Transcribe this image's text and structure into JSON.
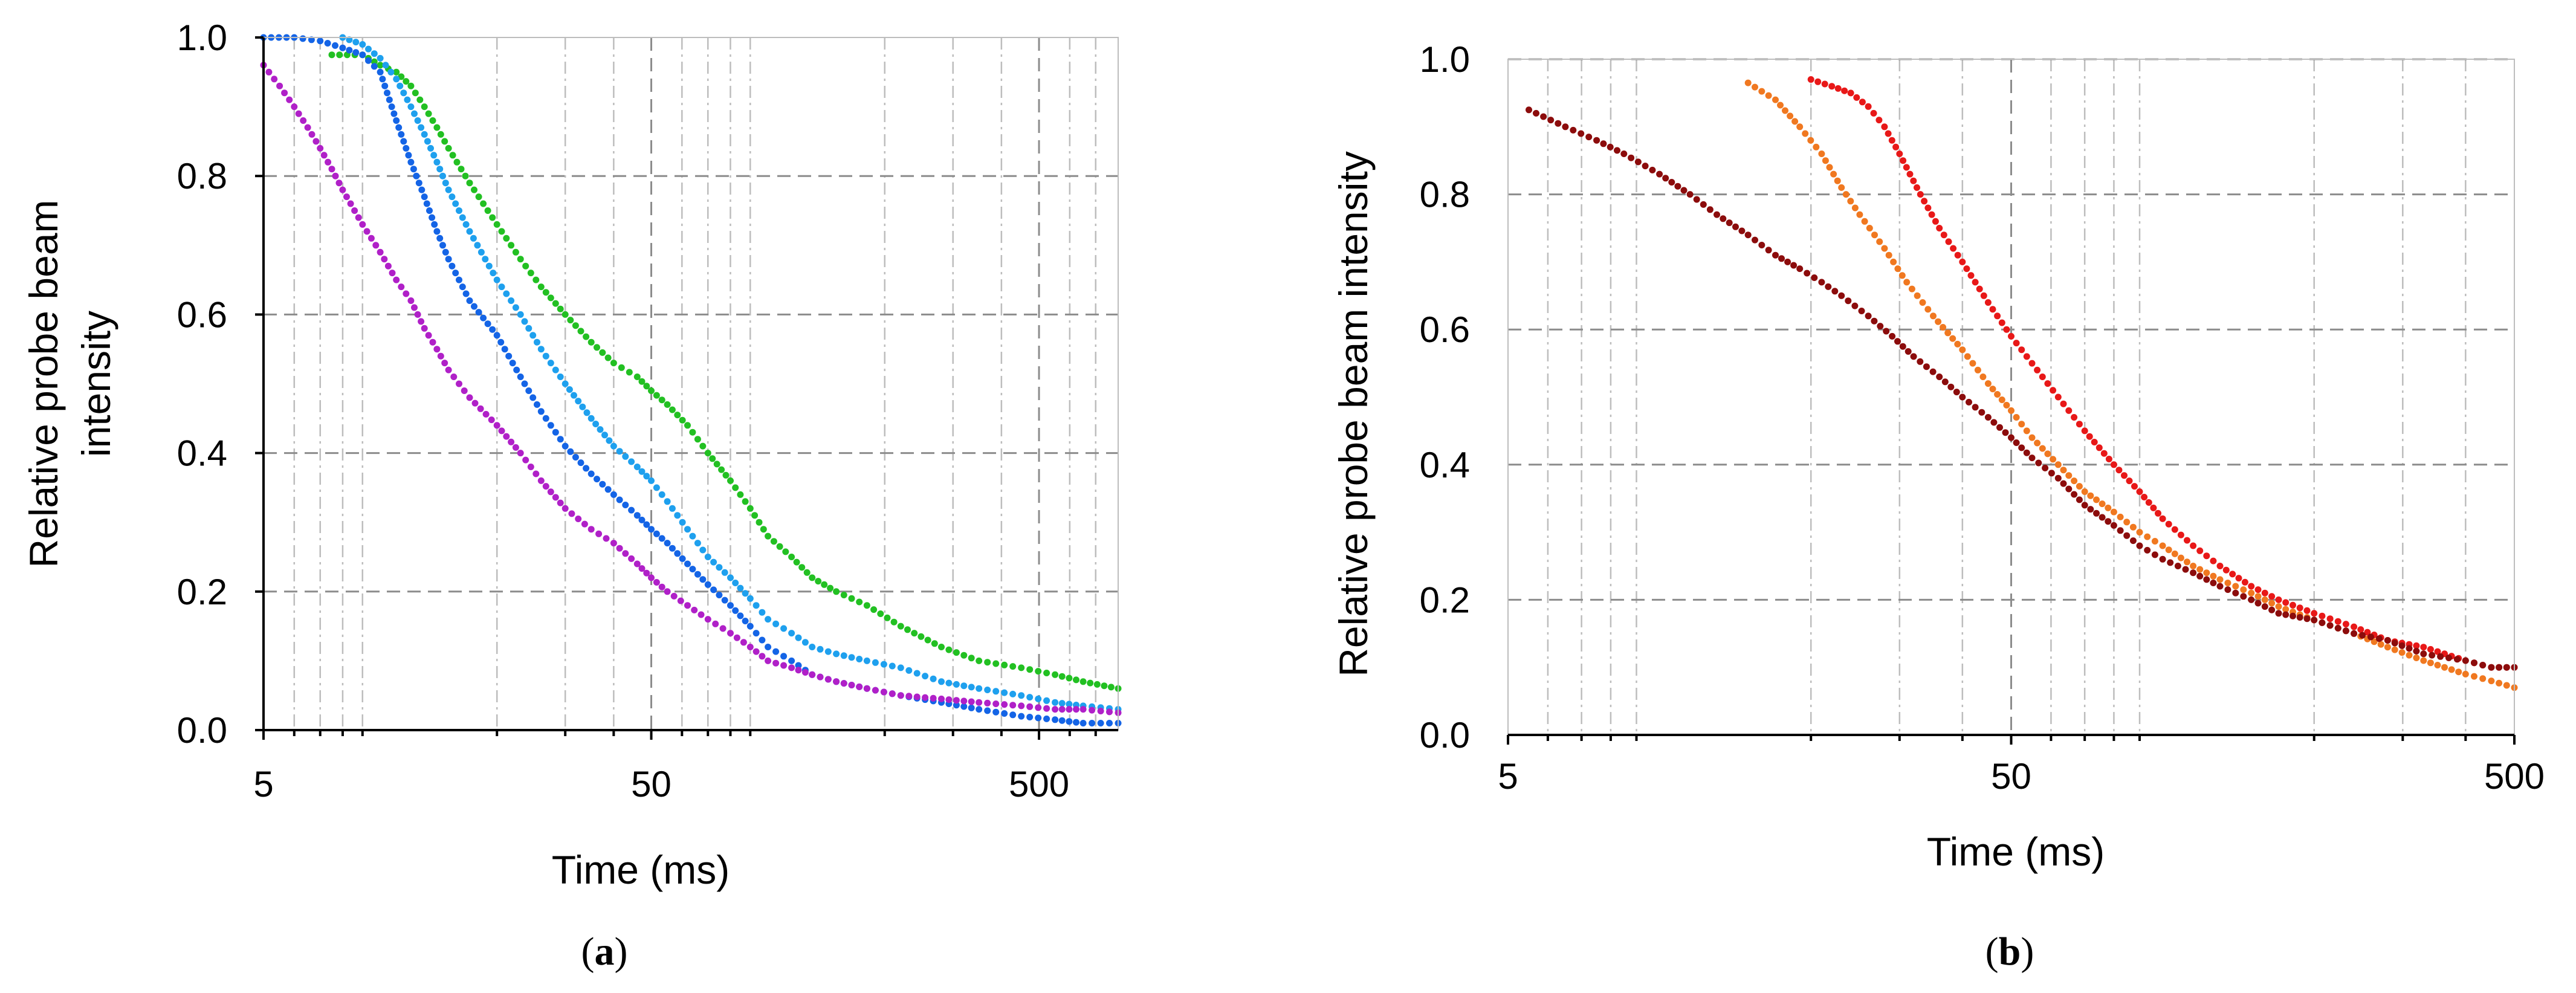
{
  "chart_data": [
    {
      "type": "scatter",
      "panel_label": "a",
      "xlabel": "Time (ms)",
      "ylabel_lines": [
        "Relative probe beam",
        "intensity"
      ],
      "xscale": "log",
      "xlim": [
        5,
        800
      ],
      "ylim": [
        0,
        1
      ],
      "x_ticks": [
        5,
        50,
        500
      ],
      "x_tick_labels": [
        "5",
        "50",
        "500"
      ],
      "y_ticks": [
        0,
        0.2,
        0.4,
        0.6,
        0.8,
        1.0
      ],
      "y_tick_labels": [
        "0.0",
        "0.2",
        "0.4",
        "0.6",
        "0.8",
        "1.0"
      ],
      "grid": true,
      "series": [
        {
          "color": "#22c022",
          "points": [
            [
              7.5,
              0.975
            ],
            [
              9,
              0.975
            ],
            [
              10,
              0.96
            ],
            [
              11,
              0.95
            ],
            [
              12,
              0.93
            ],
            [
              13,
              0.9
            ],
            [
              14,
              0.87
            ],
            [
              15,
              0.84
            ],
            [
              17,
              0.79
            ],
            [
              20,
              0.73
            ],
            [
              23,
              0.68
            ],
            [
              26,
              0.64
            ],
            [
              30,
              0.6
            ],
            [
              35,
              0.56
            ],
            [
              40,
              0.53
            ],
            [
              46,
              0.51
            ],
            [
              50,
              0.49
            ],
            [
              55,
              0.47
            ],
            [
              62,
              0.44
            ],
            [
              70,
              0.4
            ],
            [
              80,
              0.36
            ],
            [
              90,
              0.32
            ],
            [
              100,
              0.28
            ],
            [
              115,
              0.25
            ],
            [
              130,
              0.22
            ],
            [
              150,
              0.2
            ],
            [
              180,
              0.18
            ],
            [
              220,
              0.15
            ],
            [
              280,
              0.12
            ],
            [
              350,
              0.1
            ],
            [
              450,
              0.09
            ],
            [
              550,
              0.08
            ],
            [
              650,
              0.07
            ],
            [
              800,
              0.06
            ]
          ]
        },
        {
          "color": "#1ea0ee",
          "points": [
            [
              8,
              1.0
            ],
            [
              9,
              0.99
            ],
            [
              10,
              0.97
            ],
            [
              11,
              0.94
            ],
            [
              12,
              0.9
            ],
            [
              13,
              0.86
            ],
            [
              14,
              0.82
            ],
            [
              15,
              0.78
            ],
            [
              17,
              0.72
            ],
            [
              20,
              0.65
            ],
            [
              23,
              0.6
            ],
            [
              26,
              0.55
            ],
            [
              30,
              0.5
            ],
            [
              35,
              0.45
            ],
            [
              40,
              0.41
            ],
            [
              46,
              0.38
            ],
            [
              50,
              0.36
            ],
            [
              55,
              0.33
            ],
            [
              62,
              0.29
            ],
            [
              70,
              0.25
            ],
            [
              80,
              0.22
            ],
            [
              90,
              0.19
            ],
            [
              100,
              0.16
            ],
            [
              115,
              0.14
            ],
            [
              130,
              0.12
            ],
            [
              150,
              0.11
            ],
            [
              180,
              0.1
            ],
            [
              220,
              0.09
            ],
            [
              280,
              0.07
            ],
            [
              350,
              0.06
            ],
            [
              450,
              0.05
            ],
            [
              550,
              0.04
            ],
            [
              650,
              0.035
            ],
            [
              800,
              0.03
            ]
          ]
        },
        {
          "color": "#1464e6",
          "points": [
            [
              5,
              1.0
            ],
            [
              6,
              1.0
            ],
            [
              7,
              0.995
            ],
            [
              8,
              0.985
            ],
            [
              9,
              0.975
            ],
            [
              10,
              0.95
            ],
            [
              11,
              0.88
            ],
            [
              12,
              0.82
            ],
            [
              13,
              0.77
            ],
            [
              14,
              0.72
            ],
            [
              15,
              0.68
            ],
            [
              17,
              0.62
            ],
            [
              20,
              0.57
            ],
            [
              23,
              0.51
            ],
            [
              26,
              0.46
            ],
            [
              30,
              0.41
            ],
            [
              35,
              0.37
            ],
            [
              40,
              0.34
            ],
            [
              46,
              0.31
            ],
            [
              50,
              0.29
            ],
            [
              55,
              0.27
            ],
            [
              62,
              0.24
            ],
            [
              70,
              0.21
            ],
            [
              80,
              0.18
            ],
            [
              90,
              0.15
            ],
            [
              100,
              0.12
            ],
            [
              115,
              0.1
            ],
            [
              130,
              0.08
            ],
            [
              150,
              0.07
            ],
            [
              180,
              0.06
            ],
            [
              220,
              0.05
            ],
            [
              280,
              0.04
            ],
            [
              350,
              0.03
            ],
            [
              450,
              0.02
            ],
            [
              550,
              0.015
            ],
            [
              650,
              0.01
            ],
            [
              800,
              0.01
            ]
          ]
        },
        {
          "color": "#b020c8",
          "points": [
            [
              5,
              0.96
            ],
            [
              5.5,
              0.93
            ],
            [
              6,
              0.9
            ],
            [
              6.5,
              0.87
            ],
            [
              7,
              0.84
            ],
            [
              7.5,
              0.81
            ],
            [
              8,
              0.78
            ],
            [
              9,
              0.73
            ],
            [
              10,
              0.69
            ],
            [
              11,
              0.65
            ],
            [
              12,
              0.62
            ],
            [
              13,
              0.58
            ],
            [
              14,
              0.55
            ],
            [
              15,
              0.52
            ],
            [
              17,
              0.48
            ],
            [
              20,
              0.44
            ],
            [
              23,
              0.4
            ],
            [
              26,
              0.36
            ],
            [
              30,
              0.32
            ],
            [
              35,
              0.29
            ],
            [
              40,
              0.27
            ],
            [
              46,
              0.24
            ],
            [
              50,
              0.22
            ],
            [
              55,
              0.2
            ],
            [
              62,
              0.18
            ],
            [
              70,
              0.16
            ],
            [
              80,
              0.14
            ],
            [
              90,
              0.12
            ],
            [
              100,
              0.1
            ],
            [
              115,
              0.09
            ],
            [
              130,
              0.08
            ],
            [
              150,
              0.07
            ],
            [
              180,
              0.06
            ],
            [
              220,
              0.05
            ],
            [
              280,
              0.045
            ],
            [
              350,
              0.04
            ],
            [
              450,
              0.035
            ],
            [
              550,
              0.03
            ],
            [
              650,
              0.03
            ],
            [
              800,
              0.025
            ]
          ]
        }
      ]
    },
    {
      "type": "scatter",
      "panel_label": "b",
      "xlabel": "Time (ms)",
      "ylabel_lines": [
        "Relative probe beam intensity"
      ],
      "xscale": "log",
      "xlim": [
        5,
        500
      ],
      "ylim": [
        0,
        1
      ],
      "x_ticks": [
        5,
        50,
        500
      ],
      "x_tick_labels": [
        "5",
        "50",
        "500"
      ],
      "y_ticks": [
        0,
        0.2,
        0.4,
        0.6,
        0.8,
        1.0
      ],
      "y_tick_labels": [
        "0.0",
        "0.2",
        "0.4",
        "0.6",
        "0.8",
        "1.0"
      ],
      "grid": true,
      "series": [
        {
          "color": "#e81818",
          "points": [
            [
              20,
              0.97
            ],
            [
              22,
              0.96
            ],
            [
              24,
              0.95
            ],
            [
              26,
              0.93
            ],
            [
              28,
              0.9
            ],
            [
              30,
              0.86
            ],
            [
              33,
              0.8
            ],
            [
              36,
              0.75
            ],
            [
              40,
              0.7
            ],
            [
              45,
              0.64
            ],
            [
              50,
              0.59
            ],
            [
              55,
              0.55
            ],
            [
              62,
              0.5
            ],
            [
              70,
              0.45
            ],
            [
              80,
              0.4
            ],
            [
              90,
              0.36
            ],
            [
              100,
              0.32
            ],
            [
              115,
              0.28
            ],
            [
              130,
              0.25
            ],
            [
              150,
              0.22
            ],
            [
              170,
              0.2
            ],
            [
              200,
              0.18
            ],
            [
              240,
              0.16
            ],
            [
              280,
              0.14
            ],
            [
              330,
              0.13
            ],
            [
              400,
              0.11
            ],
            [
              450,
              0.1
            ],
            [
              500,
              0.1
            ]
          ]
        },
        {
          "color": "#f07820",
          "points": [
            [
              15,
              0.965
            ],
            [
              17,
              0.94
            ],
            [
              19,
              0.9
            ],
            [
              21,
              0.86
            ],
            [
              23,
              0.81
            ],
            [
              25,
              0.77
            ],
            [
              28,
              0.72
            ],
            [
              31,
              0.67
            ],
            [
              35,
              0.62
            ],
            [
              40,
              0.57
            ],
            [
              45,
              0.52
            ],
            [
              50,
              0.48
            ],
            [
              55,
              0.44
            ],
            [
              62,
              0.4
            ],
            [
              70,
              0.36
            ],
            [
              80,
              0.33
            ],
            [
              90,
              0.3
            ],
            [
              100,
              0.28
            ],
            [
              115,
              0.25
            ],
            [
              130,
              0.23
            ],
            [
              150,
              0.21
            ],
            [
              170,
              0.19
            ],
            [
              200,
              0.17
            ],
            [
              240,
              0.15
            ],
            [
              280,
              0.13
            ],
            [
              330,
              0.11
            ],
            [
              400,
              0.09
            ],
            [
              450,
              0.08
            ],
            [
              500,
              0.07
            ]
          ]
        },
        {
          "color": "#8c0c0c",
          "points": [
            [
              5.5,
              0.925
            ],
            [
              6.5,
              0.9
            ],
            [
              7.5,
              0.88
            ],
            [
              8.5,
              0.86
            ],
            [
              10,
              0.83
            ],
            [
              11.5,
              0.8
            ],
            [
              13,
              0.77
            ],
            [
              15,
              0.74
            ],
            [
              17,
              0.71
            ],
            [
              19,
              0.69
            ],
            [
              21,
              0.67
            ],
            [
              23,
              0.65
            ],
            [
              26,
              0.62
            ],
            [
              29,
              0.59
            ],
            [
              32,
              0.56
            ],
            [
              36,
              0.53
            ],
            [
              40,
              0.5
            ],
            [
              45,
              0.47
            ],
            [
              50,
              0.44
            ],
            [
              55,
              0.41
            ],
            [
              62,
              0.38
            ],
            [
              70,
              0.34
            ],
            [
              80,
              0.31
            ],
            [
              90,
              0.28
            ],
            [
              100,
              0.26
            ],
            [
              115,
              0.24
            ],
            [
              130,
              0.22
            ],
            [
              150,
              0.2
            ],
            [
              170,
              0.18
            ],
            [
              200,
              0.17
            ],
            [
              240,
              0.15
            ],
            [
              280,
              0.14
            ],
            [
              330,
              0.12
            ],
            [
              400,
              0.11
            ],
            [
              450,
              0.1
            ],
            [
              500,
              0.1
            ]
          ]
        }
      ]
    }
  ]
}
